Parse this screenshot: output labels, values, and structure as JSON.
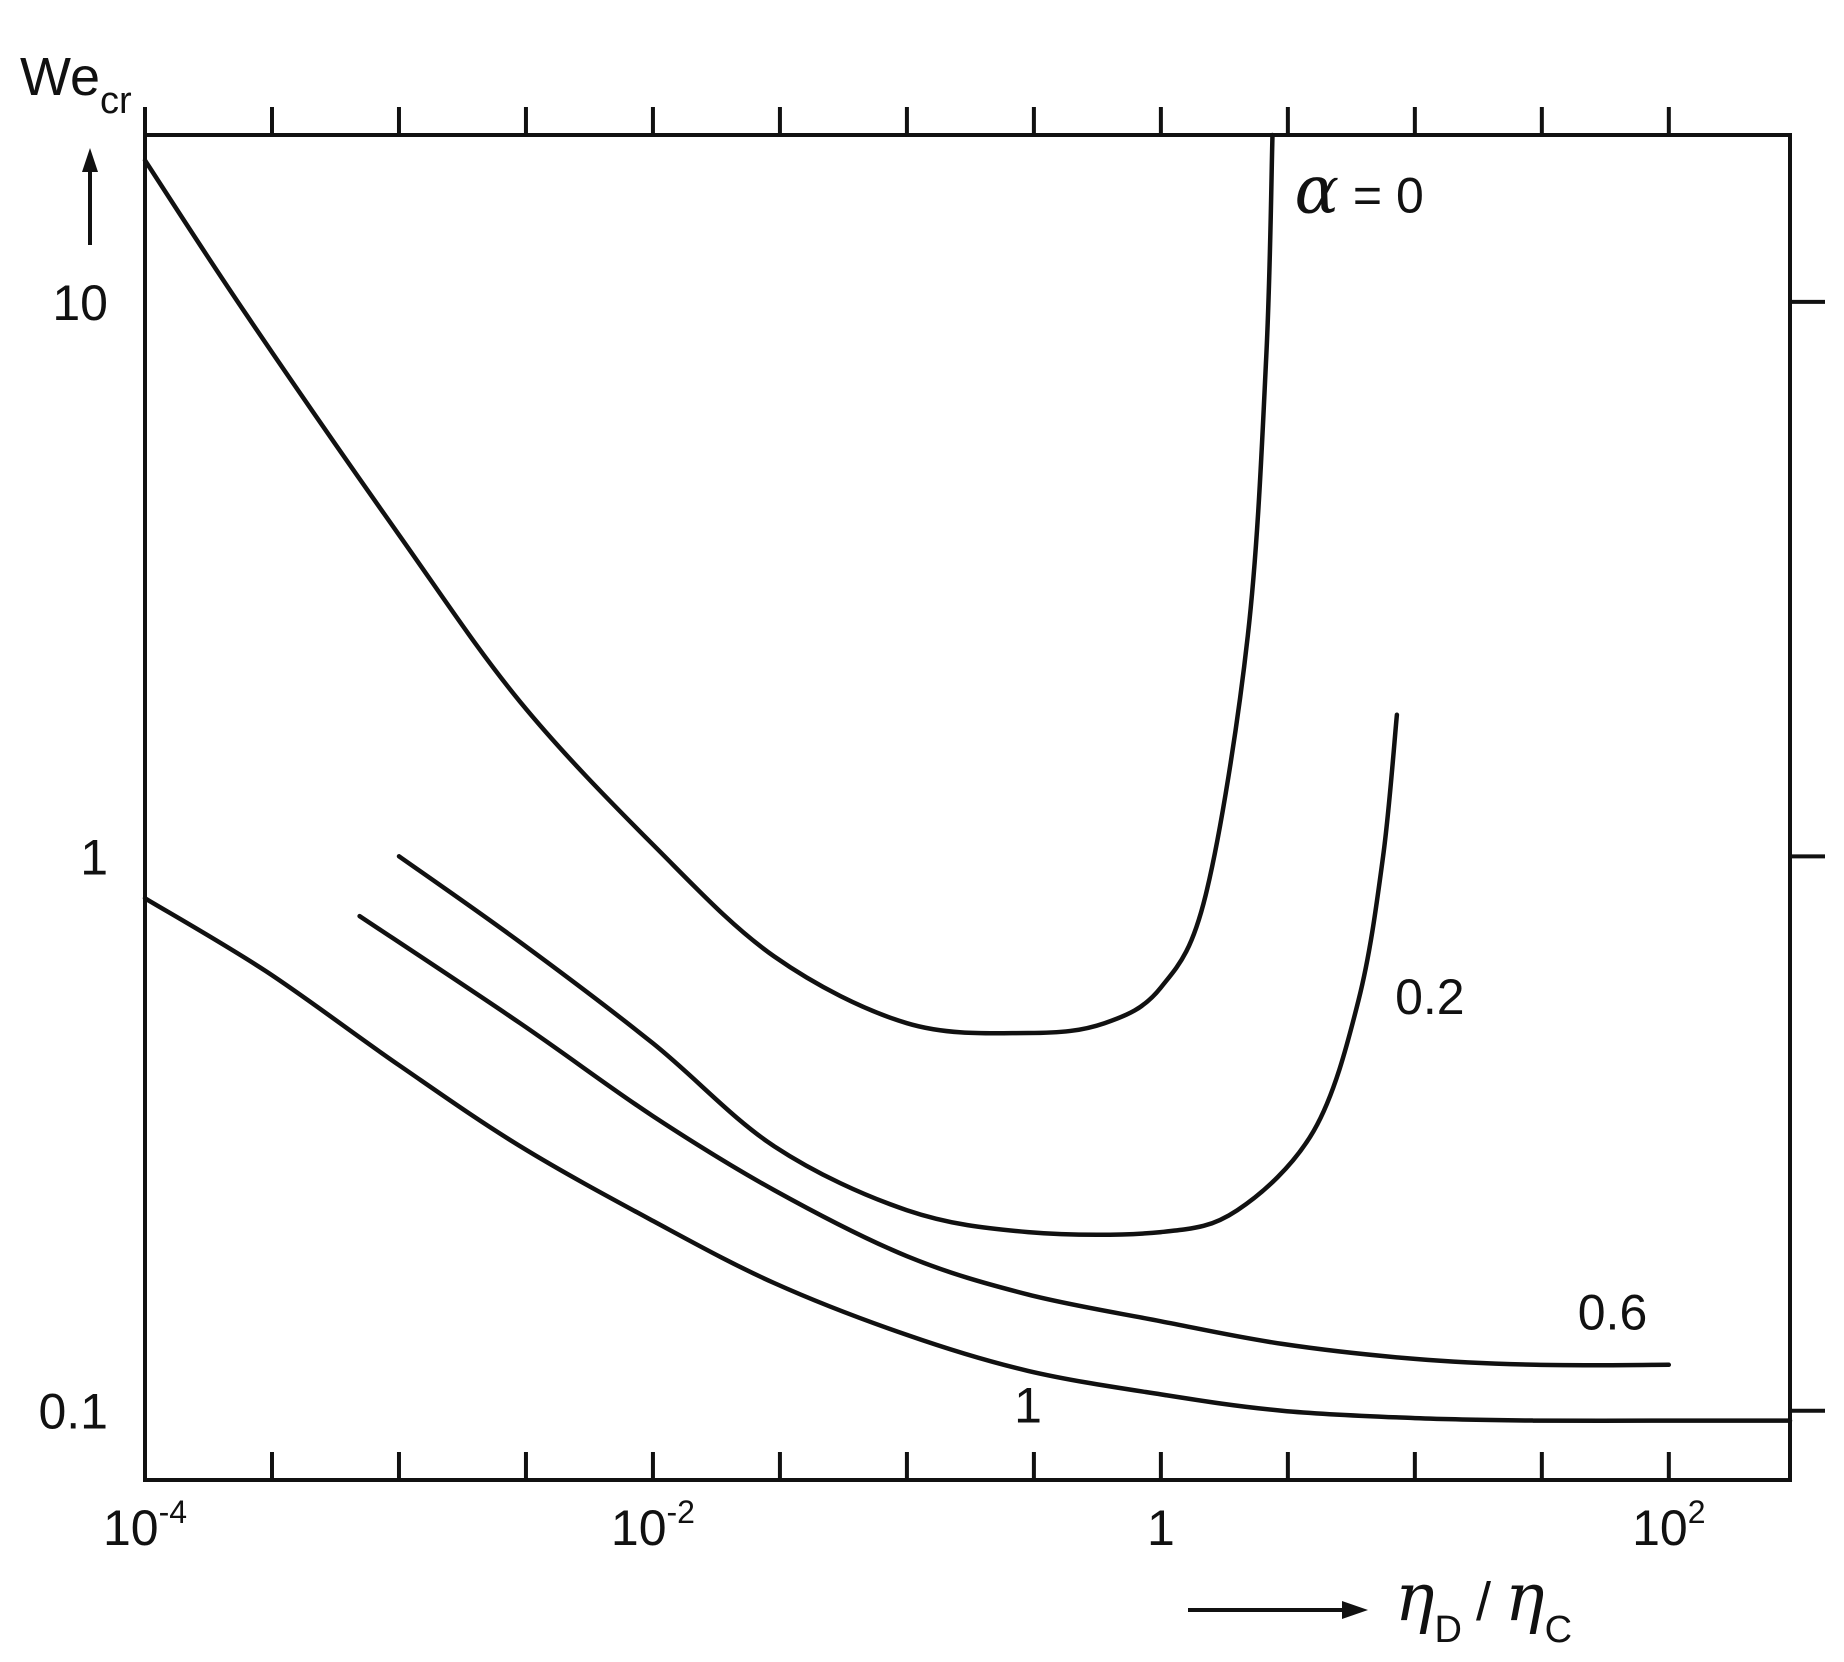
{
  "chart_data": {
    "type": "line",
    "x_scale": "log",
    "y_scale": "log",
    "xlim": [
      0.0001,
      300
    ],
    "ylim": [
      0.075,
      20
    ],
    "ylabel": {
      "main": "We",
      "sub": "cr"
    },
    "xlabel": {
      "num": "η",
      "num_sub": "D",
      "sep": "/",
      "den": "η",
      "den_sub": "C"
    },
    "x_ticks": [
      {
        "base": "10",
        "exp": "-4"
      },
      {
        "base": "10",
        "exp": "-2"
      },
      {
        "text": "1"
      },
      {
        "base": "10",
        "exp": "2"
      }
    ],
    "y_ticks": [
      "0.1",
      "1",
      "10"
    ],
    "series": [
      {
        "name": "α = 0",
        "label_parts": {
          "symbol": "α",
          "rest": " = 0"
        },
        "points": [
          [
            0.0001,
            18
          ],
          [
            0.00025,
            9.5
          ],
          [
            0.001,
            3.8
          ],
          [
            0.003,
            1.9
          ],
          [
            0.01,
            1.05
          ],
          [
            0.03,
            0.66
          ],
          [
            0.1,
            0.5
          ],
          [
            0.3,
            0.48
          ],
          [
            0.6,
            0.5
          ],
          [
            1,
            0.58
          ],
          [
            1.5,
            0.85
          ],
          [
            2.2,
            2.5
          ],
          [
            2.6,
            8
          ],
          [
            2.75,
            20
          ]
        ]
      },
      {
        "name": "0.2",
        "points": [
          [
            0.001,
            1.0
          ],
          [
            0.003,
            0.7
          ],
          [
            0.01,
            0.46
          ],
          [
            0.03,
            0.3
          ],
          [
            0.1,
            0.23
          ],
          [
            0.3,
            0.21
          ],
          [
            1,
            0.21
          ],
          [
            2,
            0.23
          ],
          [
            4,
            0.32
          ],
          [
            6,
            0.55
          ],
          [
            7.5,
            1.0
          ],
          [
            8.5,
            1.8
          ]
        ]
      },
      {
        "name": "0.6",
        "points": [
          [
            0.0007,
            0.78
          ],
          [
            0.003,
            0.5
          ],
          [
            0.01,
            0.34
          ],
          [
            0.03,
            0.25
          ],
          [
            0.1,
            0.19
          ],
          [
            0.3,
            0.162
          ],
          [
            1,
            0.145
          ],
          [
            3,
            0.132
          ],
          [
            10,
            0.124
          ],
          [
            30,
            0.121
          ],
          [
            100,
            0.121
          ]
        ]
      },
      {
        "name": "1",
        "points": [
          [
            0.0001,
            0.84
          ],
          [
            0.0003,
            0.62
          ],
          [
            0.001,
            0.42
          ],
          [
            0.003,
            0.3
          ],
          [
            0.01,
            0.22
          ],
          [
            0.03,
            0.17
          ],
          [
            0.1,
            0.137
          ],
          [
            0.3,
            0.118
          ],
          [
            1,
            0.107
          ],
          [
            3,
            0.1
          ],
          [
            10,
            0.097
          ],
          [
            30,
            0.096
          ],
          [
            100,
            0.096
          ],
          [
            300,
            0.096
          ]
        ]
      }
    ],
    "grid": false,
    "legend": "none"
  }
}
